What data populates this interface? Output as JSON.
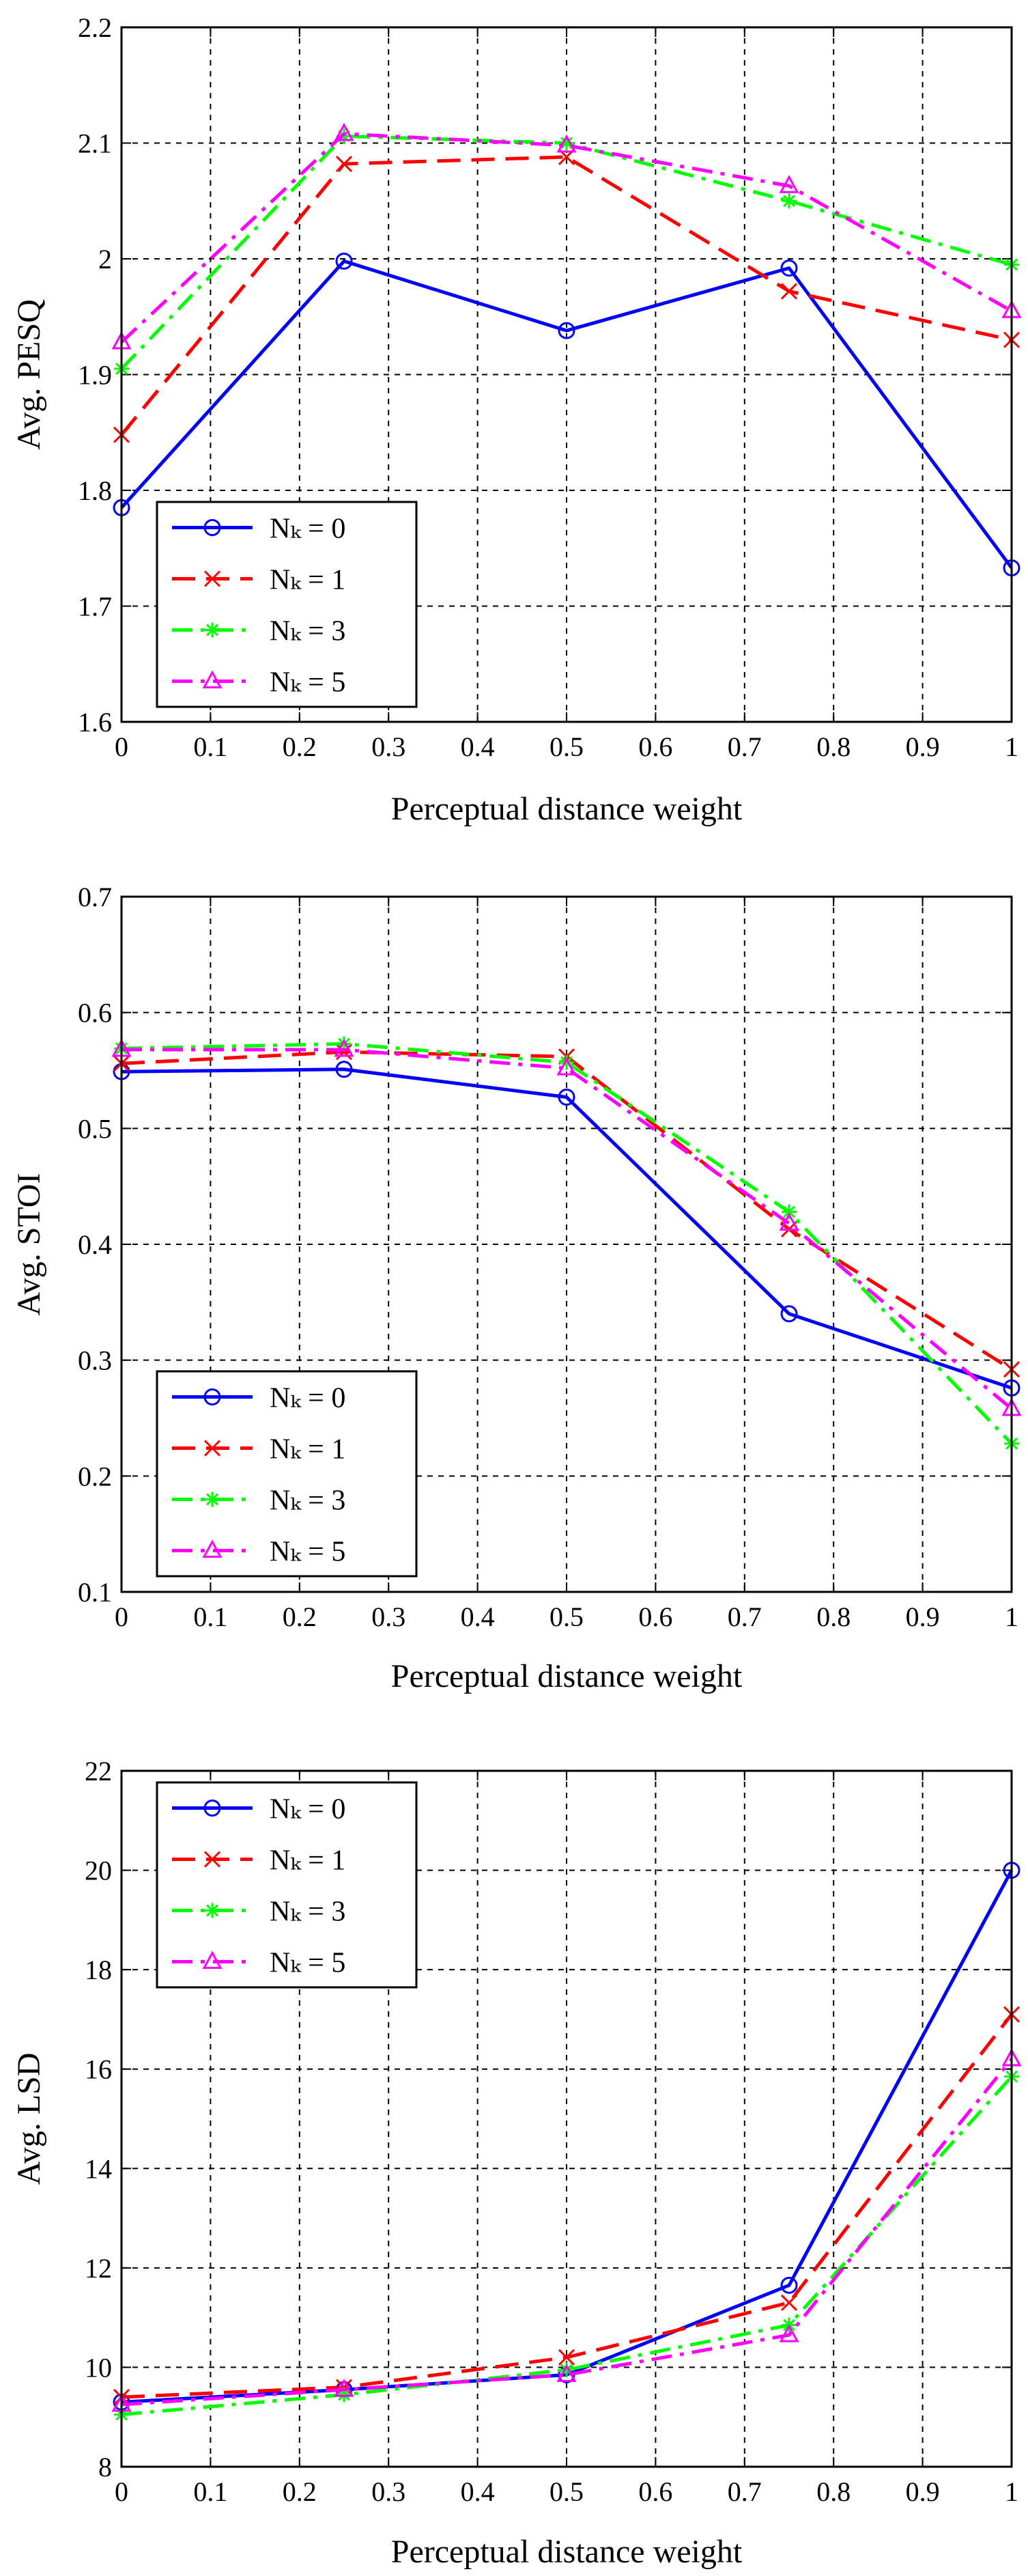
{
  "chart_data": [
    {
      "type": "line",
      "title": "",
      "xlabel": "Perceptual distance weight",
      "ylabel": "Avg. PESQ",
      "x": [
        0,
        0.25,
        0.5,
        0.75,
        1
      ],
      "xlim": [
        0,
        1
      ],
      "ylim": [
        1.6,
        2.2
      ],
      "xticks": [
        0,
        0.1,
        0.2,
        0.3,
        0.4,
        0.5,
        0.6,
        0.7,
        0.8,
        0.9,
        1
      ],
      "xtick_labels": [
        "0",
        "0.1",
        "0.2",
        "0.3",
        "0.4",
        "0.5",
        "0.6",
        "0.7",
        "0.8",
        "0.9",
        "1"
      ],
      "yticks": [
        1.6,
        1.7,
        1.8,
        1.9,
        2.0,
        2.1,
        2.2
      ],
      "ytick_labels": [
        "1.6",
        "1.7",
        "1.8",
        "1.9",
        "2",
        "2.1",
        "2.2"
      ],
      "grid": true,
      "legend_position": "bottom-left",
      "series": [
        {
          "name": "Nₖ = 0",
          "values": [
            1.785,
            1.998,
            1.938,
            1.992,
            1.733
          ],
          "color": "#0000ff",
          "dash": "solid",
          "marker": "circle"
        },
        {
          "name": "Nₖ = 1",
          "values": [
            1.848,
            2.082,
            2.088,
            1.972,
            1.93
          ],
          "color": "#ff0000",
          "dash": "dashed",
          "marker": "x"
        },
        {
          "name": "Nₖ = 3",
          "values": [
            1.905,
            2.106,
            2.1,
            2.05,
            1.995
          ],
          "color": "#00ff00",
          "dash": "dashdot",
          "marker": "star"
        },
        {
          "name": "Nₖ = 5",
          "values": [
            1.928,
            2.108,
            2.098,
            2.063,
            1.955
          ],
          "color": "#ff00ff",
          "dash": "dashdot",
          "marker": "triangle"
        }
      ]
    },
    {
      "type": "line",
      "title": "",
      "xlabel": "Perceptual distance weight",
      "ylabel": "Avg. STOI",
      "x": [
        0,
        0.25,
        0.5,
        0.75,
        1
      ],
      "xlim": [
        0,
        1
      ],
      "ylim": [
        0.1,
        0.7
      ],
      "xticks": [
        0,
        0.1,
        0.2,
        0.3,
        0.4,
        0.5,
        0.6,
        0.7,
        0.8,
        0.9,
        1
      ],
      "xtick_labels": [
        "0",
        "0.1",
        "0.2",
        "0.3",
        "0.4",
        "0.5",
        "0.6",
        "0.7",
        "0.8",
        "0.9",
        "1"
      ],
      "yticks": [
        0.1,
        0.2,
        0.3,
        0.4,
        0.5,
        0.6,
        0.7
      ],
      "ytick_labels": [
        "0.1",
        "0.2",
        "0.3",
        "0.4",
        "0.5",
        "0.6",
        "0.7"
      ],
      "grid": true,
      "legend_position": "bottom-left",
      "series": [
        {
          "name": "Nₖ = 0",
          "values": [
            0.549,
            0.551,
            0.527,
            0.34,
            0.276
          ],
          "color": "#0000ff",
          "dash": "solid",
          "marker": "circle"
        },
        {
          "name": "Nₖ = 1",
          "values": [
            0.556,
            0.566,
            0.562,
            0.413,
            0.292
          ],
          "color": "#ff0000",
          "dash": "dashed",
          "marker": "x"
        },
        {
          "name": "Nₖ = 3",
          "values": [
            0.569,
            0.573,
            0.557,
            0.428,
            0.228
          ],
          "color": "#00ff00",
          "dash": "dashdot",
          "marker": "star"
        },
        {
          "name": "Nₖ = 5",
          "values": [
            0.568,
            0.568,
            0.552,
            0.418,
            0.258
          ],
          "color": "#ff00ff",
          "dash": "dashdot",
          "marker": "triangle"
        }
      ]
    },
    {
      "type": "line",
      "title": "",
      "xlabel": "Perceptual distance weight",
      "ylabel": "Avg. LSD",
      "x": [
        0,
        0.25,
        0.5,
        0.75,
        1
      ],
      "xlim": [
        0,
        1
      ],
      "ylim": [
        8,
        22
      ],
      "xticks": [
        0,
        0.1,
        0.2,
        0.3,
        0.4,
        0.5,
        0.6,
        0.7,
        0.8,
        0.9,
        1
      ],
      "xtick_labels": [
        "0",
        "0.1",
        "0.2",
        "0.3",
        "0.4",
        "0.5",
        "0.6",
        "0.7",
        "0.8",
        "0.9",
        "1"
      ],
      "yticks": [
        8,
        10,
        12,
        14,
        16,
        18,
        20,
        22
      ],
      "ytick_labels": [
        "8",
        "10",
        "12",
        "14",
        "16",
        "18",
        "20",
        "22"
      ],
      "grid": true,
      "legend_position": "top-left",
      "series": [
        {
          "name": "Nₖ = 0",
          "values": [
            9.3,
            9.55,
            9.85,
            11.65,
            20.0
          ],
          "color": "#0000ff",
          "dash": "solid",
          "marker": "circle"
        },
        {
          "name": "Nₖ = 1",
          "values": [
            9.4,
            9.6,
            10.2,
            11.3,
            17.1
          ],
          "color": "#ff0000",
          "dash": "dashed",
          "marker": "x"
        },
        {
          "name": "Nₖ = 3",
          "values": [
            9.05,
            9.45,
            9.95,
            10.85,
            15.85
          ],
          "color": "#00ff00",
          "dash": "dashdot",
          "marker": "star"
        },
        {
          "name": "Nₖ = 5",
          "values": [
            9.25,
            9.55,
            9.85,
            10.65,
            16.2
          ],
          "color": "#ff00ff",
          "dash": "dashdot",
          "marker": "triangle"
        }
      ]
    }
  ]
}
